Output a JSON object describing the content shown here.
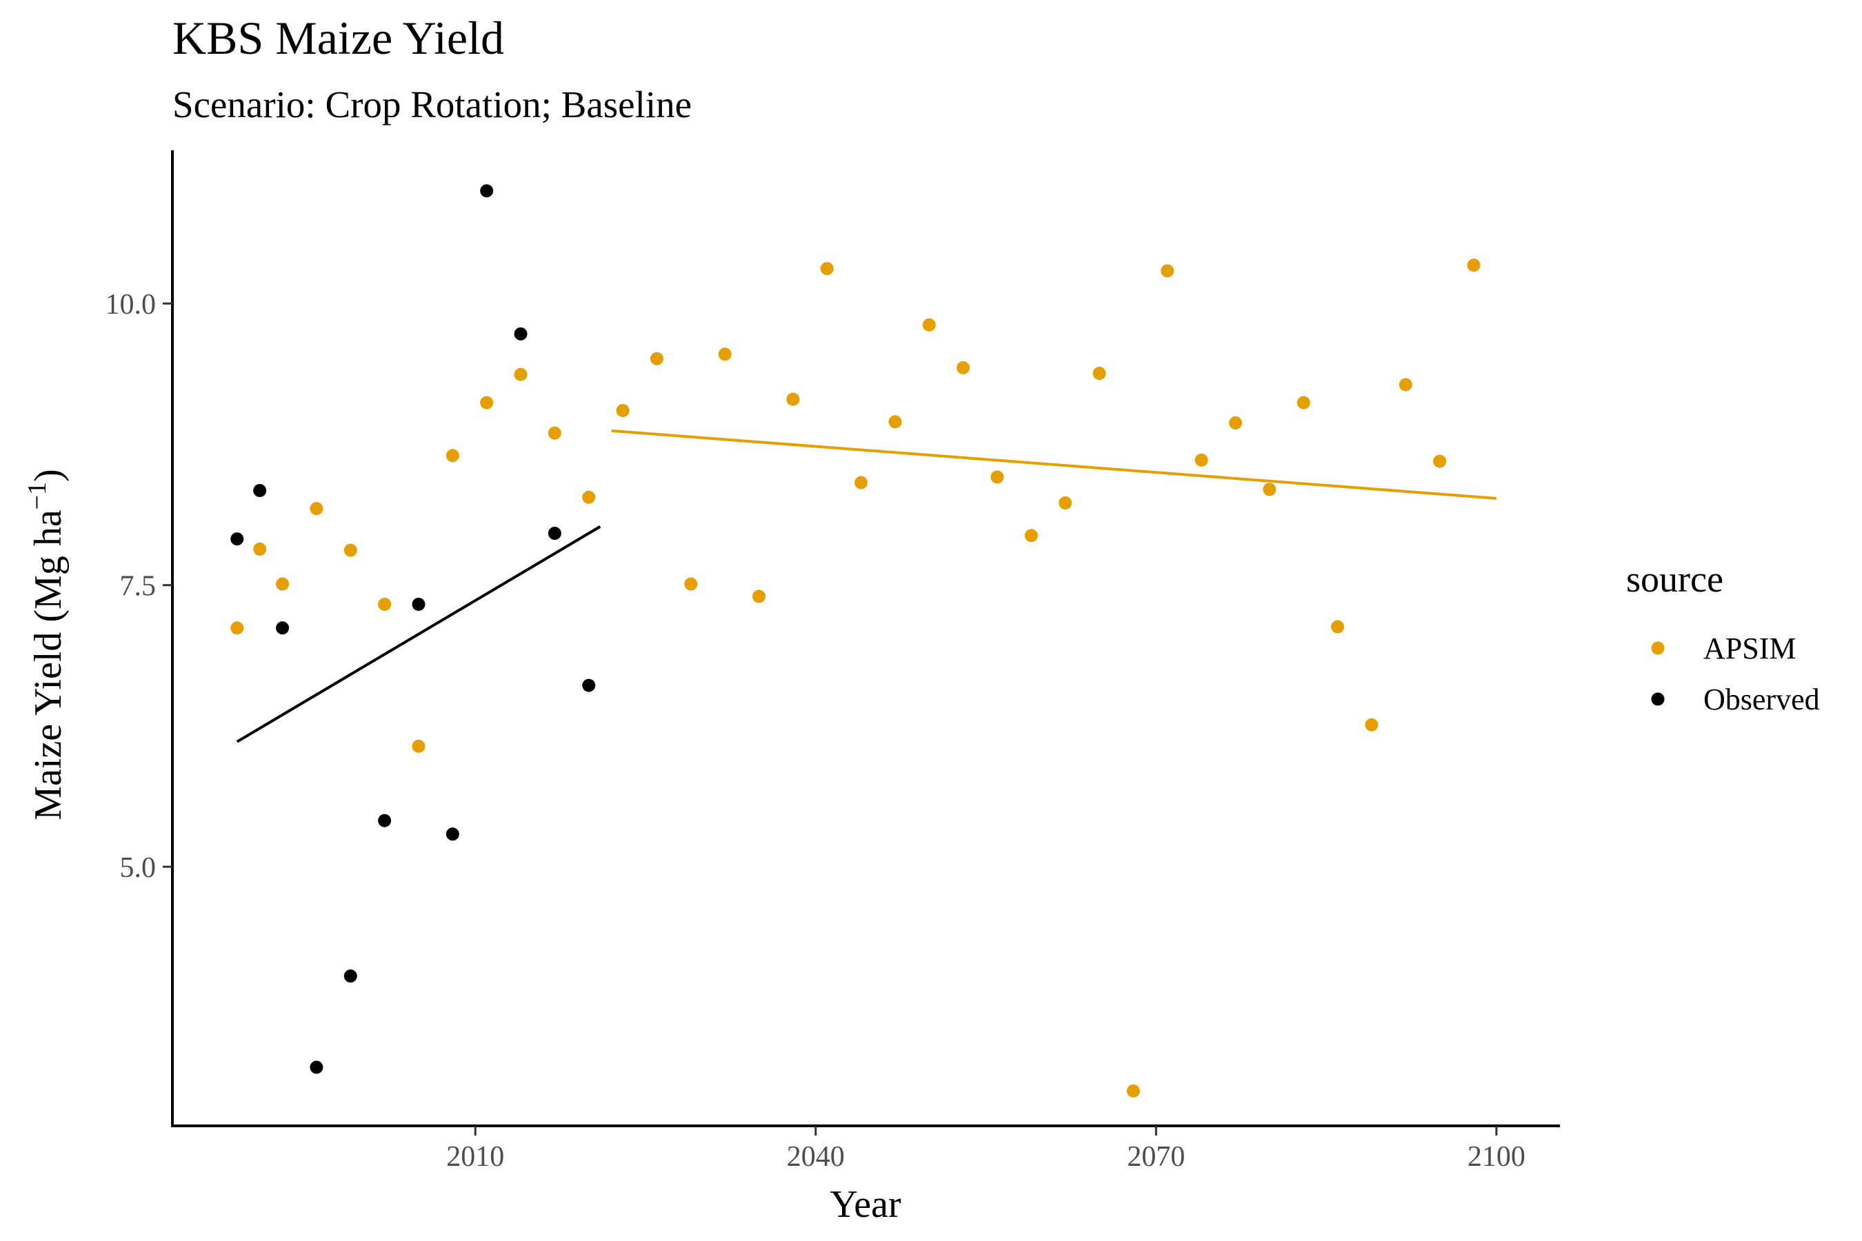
{
  "chart_data": {
    "type": "scatter",
    "title": "KBS Maize Yield",
    "subtitle": "Scenario: Crop Rotation; Baseline",
    "xlabel": "Year",
    "ylabel": "Maize Yield (Mg ha",
    "ylabel_superscript": "−1",
    "ylabel_close": ")",
    "xlim": [
      1983.3,
      2105.6
    ],
    "ylim": [
      2.7,
      11.36
    ],
    "x_ticks": [
      2010,
      2040,
      2070,
      2100
    ],
    "x_tick_labels": [
      "2010",
      "2040",
      "2070",
      "2100"
    ],
    "y_ticks": [
      5.0,
      7.5,
      10.0
    ],
    "y_tick_labels": [
      "5.0",
      "7.5",
      "10.0"
    ],
    "grid": false,
    "legend": {
      "title": "source",
      "position": "right"
    },
    "series": [
      {
        "name": "APSIM",
        "color": "#E69F00",
        "x": [
          1989,
          1991,
          1993,
          1996,
          1999,
          2002,
          2005,
          2008,
          2011,
          2014,
          2017,
          2020,
          2023,
          2026,
          2029,
          2032,
          2035,
          2038,
          2041,
          2044,
          2047,
          2050,
          2053,
          2056,
          2059,
          2062,
          2065,
          2068,
          2071,
          2074,
          2077,
          2080,
          2083,
          2086,
          2089,
          2092,
          2095,
          2098
        ],
        "y": [
          7.12,
          7.82,
          7.51,
          8.18,
          7.81,
          7.33,
          6.07,
          8.65,
          9.12,
          9.37,
          8.85,
          8.28,
          9.05,
          9.51,
          7.51,
          9.55,
          7.4,
          9.15,
          10.31,
          8.41,
          8.95,
          9.81,
          9.43,
          8.46,
          7.94,
          8.23,
          9.38,
          3.01,
          10.29,
          8.61,
          8.94,
          8.35,
          9.12,
          7.13,
          6.26,
          9.28,
          8.6,
          10.34
        ]
      },
      {
        "name": "Observed",
        "color": "#000000",
        "x": [
          1989,
          1991,
          1993,
          1996,
          1999,
          2002,
          2005,
          2008,
          2011,
          2014,
          2017,
          2020
        ],
        "y": [
          7.91,
          8.34,
          7.12,
          3.22,
          4.03,
          5.41,
          7.33,
          5.29,
          11.0,
          9.73,
          7.96,
          6.61
        ]
      }
    ],
    "trendlines": [
      {
        "series": "Observed",
        "color": "#000000",
        "x": [
          1989,
          2021
        ],
        "y": [
          6.11,
          8.02
        ]
      },
      {
        "series": "APSIM",
        "color": "#E69F00",
        "x": [
          2022,
          2100
        ],
        "y": [
          8.87,
          8.27
        ]
      }
    ]
  }
}
